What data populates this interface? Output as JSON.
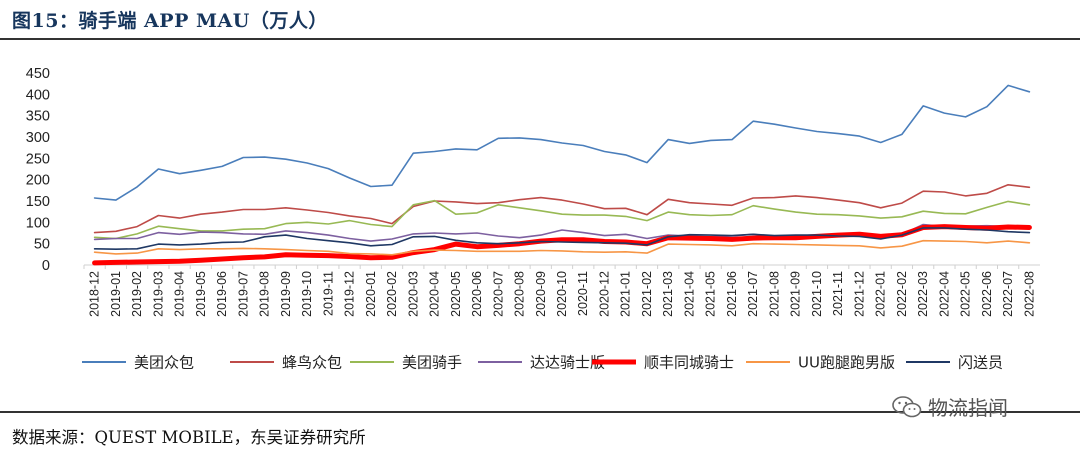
{
  "header": {
    "title": "图15：骑手端 APP MAU（万人）"
  },
  "footer": {
    "source": "数据来源：QUEST MOBILE，东吴证券研究所"
  },
  "watermark": {
    "text": "物流指闻"
  },
  "chart_data": {
    "type": "line",
    "title": "",
    "xlabel": "",
    "ylabel": "",
    "ylim": [
      0,
      450
    ],
    "yticks": [
      0,
      50,
      100,
      150,
      200,
      250,
      300,
      350,
      400,
      450
    ],
    "grid": false,
    "legend_position": "bottom",
    "x": [
      "2018-12",
      "2019-01",
      "2019-02",
      "2019-03",
      "2019-04",
      "2019-05",
      "2019-06",
      "2019-07",
      "2019-08",
      "2019-09",
      "2019-10",
      "2019-11",
      "2019-12",
      "2020-01",
      "2020-02",
      "2020-03",
      "2020-04",
      "2020-05",
      "2020-06",
      "2020-07",
      "2020-08",
      "2020-09",
      "2020-10",
      "2020-11",
      "2020-12",
      "2021-01",
      "2021-02",
      "2021-03",
      "2021-04",
      "2021-05",
      "2021-06",
      "2021-07",
      "2021-08",
      "2021-09",
      "2021-10",
      "2021-11",
      "2021-12",
      "2022-01",
      "2022-02",
      "2022-03",
      "2022-04",
      "2022-05",
      "2022-06",
      "2022-07",
      "2022-08"
    ],
    "series": [
      {
        "name": "美团众包",
        "color": "#4a7ebb",
        "width": 1.6,
        "values": [
          157,
          152,
          183,
          225,
          214,
          222,
          231,
          252,
          253,
          248,
          239,
          226,
          204,
          184,
          187,
          262,
          266,
          272,
          270,
          297,
          298,
          294,
          286,
          280,
          266,
          258,
          240,
          294,
          285,
          292,
          294,
          337,
          330,
          321,
          313,
          308,
          302,
          287,
          306,
          373,
          356,
          347,
          371,
          421,
          406
        ]
      },
      {
        "name": "蜂鸟众包",
        "color": "#be4b48",
        "width": 1.6,
        "values": [
          76,
          79,
          90,
          116,
          110,
          119,
          124,
          130,
          130,
          134,
          129,
          123,
          115,
          109,
          97,
          137,
          150,
          148,
          144,
          146,
          153,
          158,
          152,
          143,
          132,
          133,
          118,
          154,
          146,
          143,
          140,
          157,
          158,
          162,
          158,
          152,
          146,
          134,
          145,
          173,
          171,
          162,
          168,
          188,
          182
        ]
      },
      {
        "name": "美团骑手",
        "color": "#98b954",
        "width": 1.6,
        "values": [
          65,
          62,
          73,
          91,
          85,
          80,
          80,
          84,
          85,
          97,
          100,
          96,
          104,
          95,
          90,
          141,
          151,
          119,
          122,
          141,
          134,
          127,
          119,
          117,
          117,
          114,
          104,
          124,
          118,
          116,
          118,
          139,
          131,
          124,
          119,
          118,
          115,
          110,
          113,
          126,
          121,
          120,
          135,
          149,
          141
        ]
      },
      {
        "name": "达达骑士版",
        "color": "#7d60a0",
        "width": 1.6,
        "values": [
          60,
          62,
          62,
          76,
          72,
          77,
          76,
          73,
          72,
          80,
          76,
          70,
          62,
          56,
          61,
          73,
          75,
          73,
          75,
          68,
          64,
          70,
          82,
          76,
          69,
          72,
          62,
          70,
          68,
          66,
          68,
          72,
          66,
          67,
          69,
          72,
          75,
          62,
          72,
          95,
          90,
          91,
          92,
          90,
          88
        ]
      },
      {
        "name": "顺丰同城骑士",
        "color": "#ff0000",
        "width": 5,
        "values": [
          5,
          6,
          7,
          8,
          9,
          11,
          14,
          17,
          19,
          24,
          23,
          22,
          20,
          17,
          18,
          29,
          36,
          49,
          43,
          46,
          50,
          56,
          59,
          59,
          55,
          54,
          50,
          64,
          63,
          62,
          60,
          63,
          64,
          64,
          67,
          70,
          72,
          67,
          71,
          88,
          90,
          88,
          86,
          89,
          88
        ]
      },
      {
        "name": "UU跑腿跑男版",
        "color": "#f79646",
        "width": 1.6,
        "values": [
          30,
          26,
          28,
          38,
          36,
          38,
          38,
          39,
          38,
          36,
          34,
          32,
          27,
          26,
          24,
          32,
          35,
          34,
          32,
          32,
          32,
          34,
          33,
          31,
          30,
          31,
          28,
          49,
          48,
          47,
          45,
          50,
          49,
          48,
          47,
          46,
          45,
          40,
          44,
          57,
          56,
          55,
          52,
          56,
          52
        ]
      },
      {
        "name": "闪送员",
        "color": "#1f3864",
        "width": 1.6,
        "values": [
          38,
          37,
          38,
          49,
          47,
          49,
          53,
          54,
          66,
          70,
          62,
          57,
          52,
          45,
          48,
          66,
          67,
          58,
          52,
          50,
          52,
          55,
          54,
          53,
          52,
          51,
          47,
          66,
          71,
          70,
          69,
          72,
          69,
          70,
          70,
          68,
          67,
          61,
          70,
          87,
          87,
          84,
          82,
          78,
          76
        ]
      }
    ]
  }
}
